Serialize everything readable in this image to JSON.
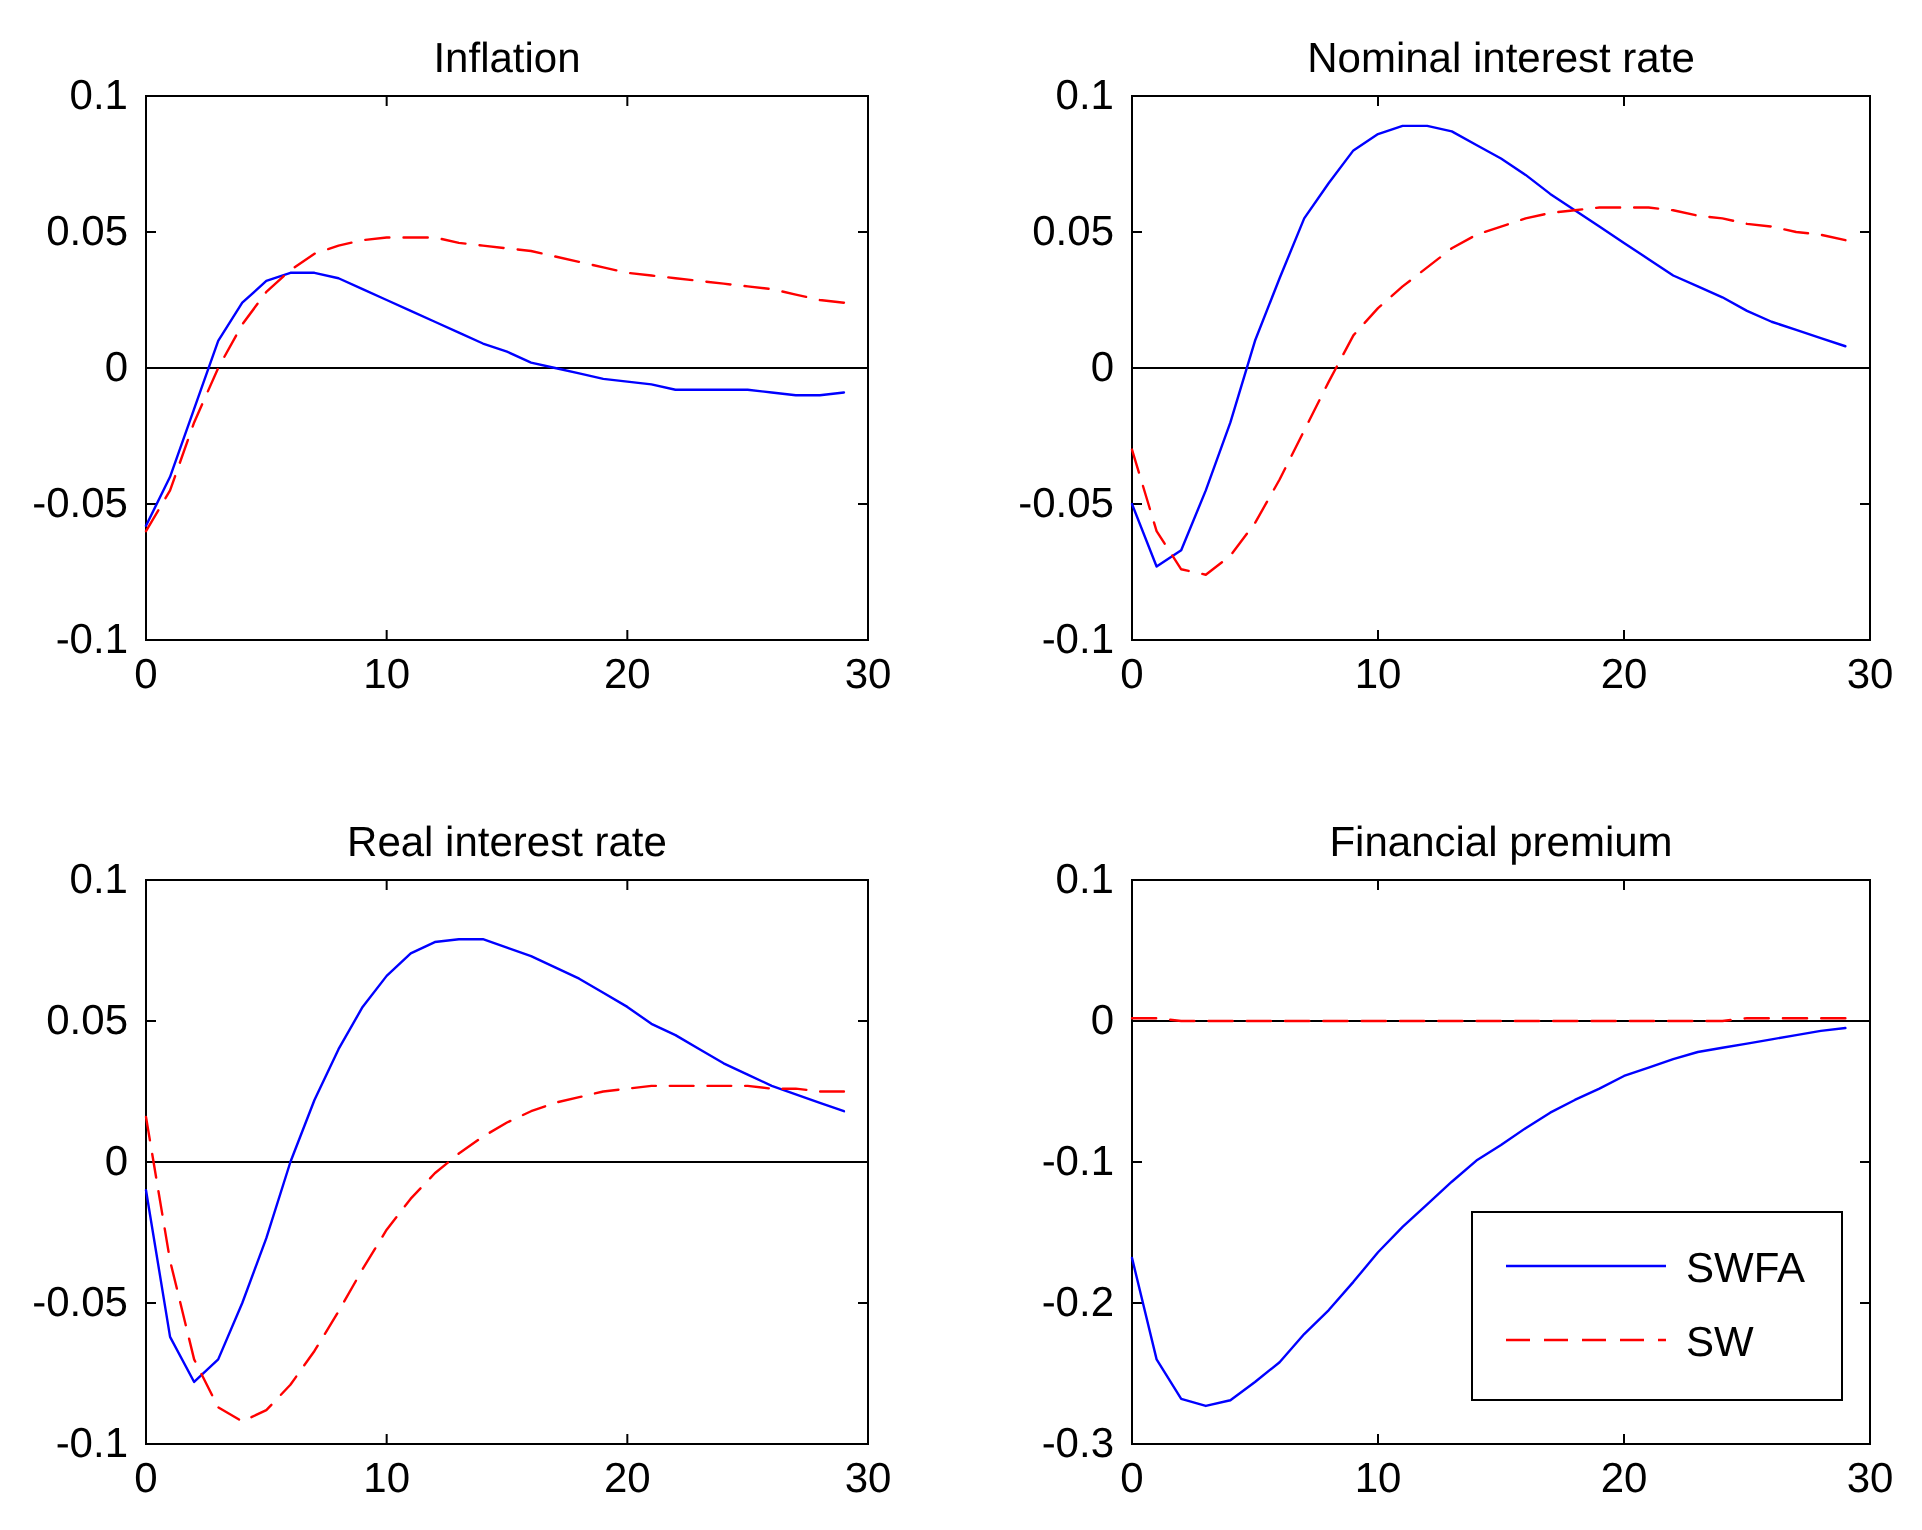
{
  "chart_data": [
    {
      "type": "line",
      "title": "Inflation",
      "x": [
        0,
        1,
        2,
        3,
        4,
        5,
        6,
        7,
        8,
        9,
        10,
        11,
        12,
        13,
        14,
        15,
        16,
        17,
        18,
        19,
        20,
        21,
        22,
        23,
        24,
        25,
        26,
        27,
        28,
        29
      ],
      "xlim": [
        0,
        30
      ],
      "xticks": [
        0,
        10,
        20,
        30
      ],
      "ylim": [
        -0.1,
        0.1
      ],
      "yticks": [
        -0.1,
        -0.05,
        0,
        0.05,
        0.1
      ],
      "legend": false,
      "ref_lines": [
        {
          "axis": "y",
          "value": 0,
          "color": "#000000"
        }
      ],
      "series": [
        {
          "color": "#0000ff",
          "line_style": "solid",
          "values": [
            -0.058,
            -0.04,
            -0.015,
            0.01,
            0.024,
            0.032,
            0.035,
            0.035,
            0.033,
            0.029,
            0.025,
            0.021,
            0.017,
            0.013,
            0.009,
            0.006,
            0.002,
            0,
            -0.002,
            -0.004,
            -0.005,
            -0.006,
            -0.008,
            -0.008,
            -0.008,
            -0.008,
            -0.009,
            -0.01,
            -0.01,
            -0.009
          ]
        },
        {
          "color": "#ff0000",
          "line_style": "dashed",
          "values": [
            -0.06,
            -0.045,
            -0.02,
            0,
            0.016,
            0.028,
            0.036,
            0.042,
            0.045,
            0.047,
            0.048,
            0.048,
            0.048,
            0.046,
            0.045,
            0.044,
            0.043,
            0.041,
            0.039,
            0.037,
            0.035,
            0.034,
            0.033,
            0.032,
            0.031,
            0.03,
            0.029,
            0.027,
            0.025,
            0.024
          ]
        }
      ]
    },
    {
      "type": "line",
      "title": "Nominal interest rate",
      "x": [
        0,
        1,
        2,
        3,
        4,
        5,
        6,
        7,
        8,
        9,
        10,
        11,
        12,
        13,
        14,
        15,
        16,
        17,
        18,
        19,
        20,
        21,
        22,
        23,
        24,
        25,
        26,
        27,
        28,
        29
      ],
      "xlim": [
        0,
        30
      ],
      "xticks": [
        0,
        10,
        20,
        30
      ],
      "ylim": [
        -0.1,
        0.1
      ],
      "yticks": [
        -0.1,
        -0.05,
        0,
        0.05,
        0.1
      ],
      "legend": false,
      "ref_lines": [
        {
          "axis": "y",
          "value": 0,
          "color": "#000000"
        }
      ],
      "series": [
        {
          "color": "#0000ff",
          "line_style": "solid",
          "values": [
            -0.05,
            -0.073,
            -0.067,
            -0.045,
            -0.02,
            0.01,
            0.033,
            0.055,
            0.068,
            0.08,
            0.086,
            0.089,
            0.089,
            0.087,
            0.082,
            0.077,
            0.071,
            0.064,
            0.058,
            0.052,
            0.046,
            0.04,
            0.034,
            0.03,
            0.026,
            0.021,
            0.017,
            0.014,
            0.011,
            0.008
          ]
        },
        {
          "color": "#ff0000",
          "line_style": "dashed",
          "values": [
            -0.03,
            -0.06,
            -0.074,
            -0.076,
            -0.069,
            -0.057,
            -0.041,
            -0.023,
            -0.005,
            0.012,
            0.022,
            0.03,
            0.037,
            0.044,
            0.049,
            0.052,
            0.055,
            0.057,
            0.058,
            0.059,
            0.059,
            0.059,
            0.058,
            0.056,
            0.055,
            0.053,
            0.052,
            0.05,
            0.049,
            0.047
          ]
        }
      ]
    },
    {
      "type": "line",
      "title": "Real interest rate",
      "x": [
        0,
        1,
        2,
        3,
        4,
        5,
        6,
        7,
        8,
        9,
        10,
        11,
        12,
        13,
        14,
        15,
        16,
        17,
        18,
        19,
        20,
        21,
        22,
        23,
        24,
        25,
        26,
        27,
        28,
        29
      ],
      "xlim": [
        0,
        30
      ],
      "xticks": [
        0,
        10,
        20,
        30
      ],
      "ylim": [
        -0.1,
        0.1
      ],
      "yticks": [
        -0.1,
        -0.05,
        0,
        0.05,
        0.1
      ],
      "legend": false,
      "ref_lines": [
        {
          "axis": "y",
          "value": 0,
          "color": "#000000"
        }
      ],
      "series": [
        {
          "color": "#0000ff",
          "line_style": "solid",
          "values": [
            -0.01,
            -0.062,
            -0.078,
            -0.07,
            -0.05,
            -0.027,
            0,
            0.022,
            0.04,
            0.055,
            0.066,
            0.074,
            0.078,
            0.079,
            0.079,
            0.076,
            0.073,
            0.069,
            0.065,
            0.06,
            0.055,
            0.049,
            0.045,
            0.04,
            0.035,
            0.031,
            0.027,
            0.024,
            0.021,
            0.018
          ]
        },
        {
          "color": "#ff0000",
          "line_style": "dashed",
          "values": [
            0.016,
            -0.035,
            -0.07,
            -0.087,
            -0.092,
            -0.088,
            -0.079,
            -0.067,
            -0.053,
            -0.038,
            -0.024,
            -0.013,
            -0.004,
            0.003,
            0.009,
            0.014,
            0.018,
            0.021,
            0.023,
            0.025,
            0.026,
            0.027,
            0.027,
            0.027,
            0.027,
            0.027,
            0.026,
            0.026,
            0.025,
            0.025
          ]
        }
      ]
    },
    {
      "type": "line",
      "title": "Financial premium",
      "x": [
        0,
        1,
        2,
        3,
        4,
        5,
        6,
        7,
        8,
        9,
        10,
        11,
        12,
        13,
        14,
        15,
        16,
        17,
        18,
        19,
        20,
        21,
        22,
        23,
        24,
        25,
        26,
        27,
        28,
        29
      ],
      "xlim": [
        0,
        30
      ],
      "xticks": [
        0,
        10,
        20,
        30
      ],
      "ylim": [
        -0.3,
        0.1
      ],
      "yticks": [
        -0.3,
        -0.2,
        -0.1,
        0,
        0.1
      ],
      "legend": "bottom right",
      "ref_lines": [
        {
          "axis": "y",
          "value": 0,
          "color": "#000000"
        }
      ],
      "series": [
        {
          "name": "SWFA",
          "color": "#0000ff",
          "line_style": "solid",
          "values": [
            -0.168,
            -0.24,
            -0.268,
            -0.273,
            -0.269,
            -0.256,
            -0.242,
            -0.222,
            -0.205,
            -0.185,
            -0.164,
            -0.146,
            -0.13,
            -0.114,
            -0.099,
            -0.088,
            -0.076,
            -0.065,
            -0.056,
            -0.048,
            -0.039,
            -0.033,
            -0.027,
            -0.022,
            -0.019,
            -0.016,
            -0.013,
            -0.01,
            -0.007,
            -0.005
          ]
        },
        {
          "name": "SW",
          "color": "#ff0000",
          "line_style": "dashed",
          "values": [
            0.002,
            0.002,
            0,
            0,
            0,
            0,
            0,
            0,
            0,
            0,
            0,
            0,
            0,
            0,
            0,
            0,
            0,
            0,
            0,
            0,
            0,
            0,
            0,
            0,
            0,
            0.002,
            0.002,
            0.002,
            0.002,
            0.002
          ]
        }
      ]
    }
  ]
}
